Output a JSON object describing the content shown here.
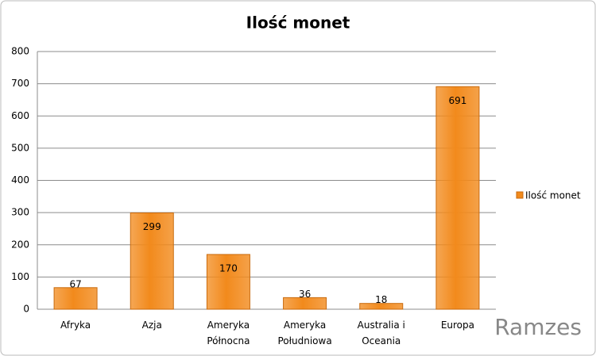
{
  "chart_data": {
    "type": "bar",
    "title": "Ilość monet",
    "categories": [
      "Afryka",
      "Azja",
      "Ameryka Północna",
      "Ameryka Południowa",
      "Australia i Oceania",
      "Europa"
    ],
    "series": [
      {
        "name": "Ilość monet",
        "color": "#f28a1c",
        "values": [
          67,
          299,
          170,
          36,
          18,
          691
        ]
      }
    ],
    "ylim": [
      0,
      800
    ],
    "yticks": [
      0,
      100,
      200,
      300,
      400,
      500,
      600,
      700,
      800
    ],
    "grid": true,
    "legend": "right",
    "watermark": "Ramzes"
  }
}
